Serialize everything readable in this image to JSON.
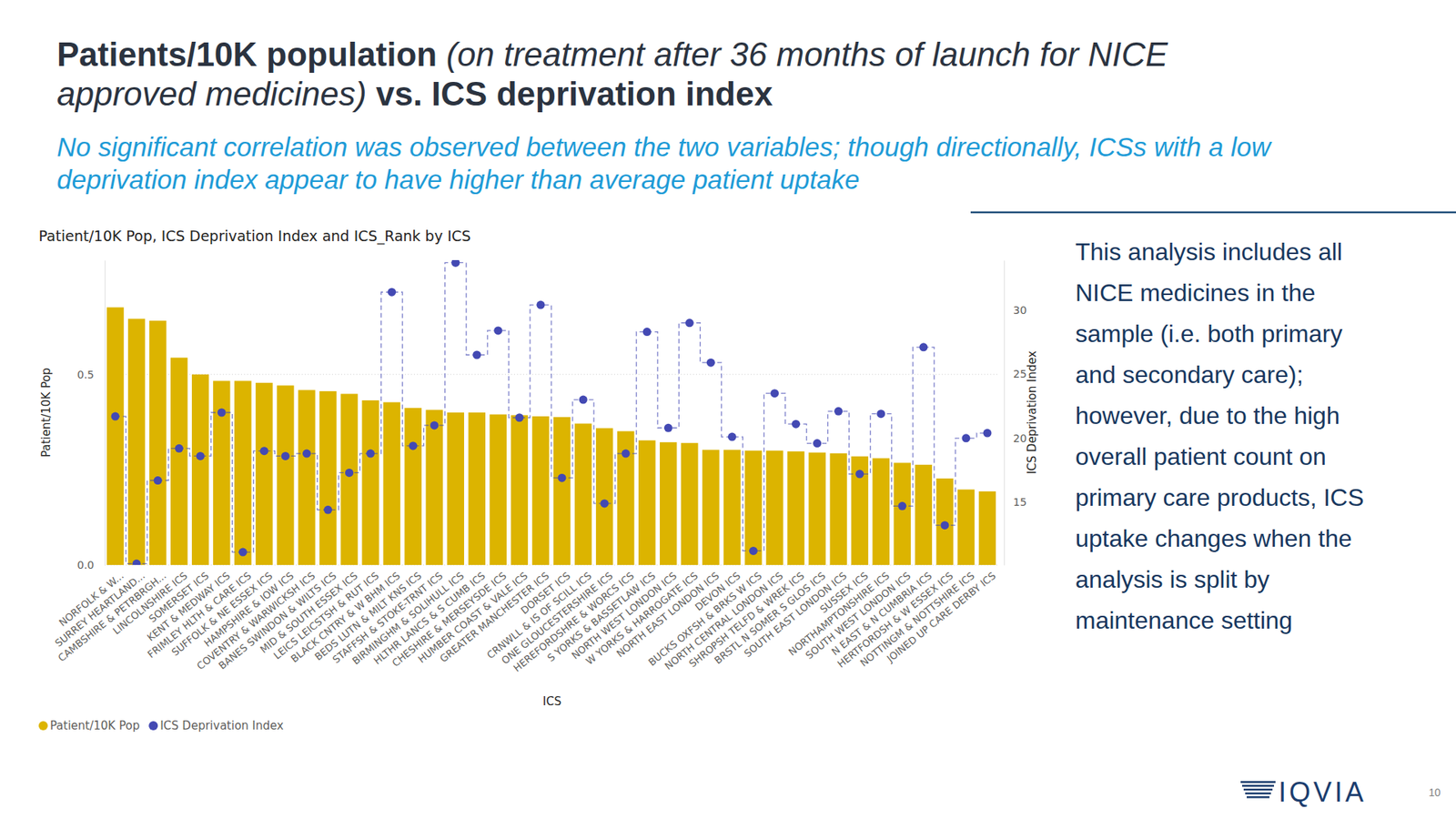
{
  "slide": {
    "title": [
      "Patients/10K population",
      "(on treatment after 36 months of launch for NICE approved medicines)",
      "vs. ICS deprivation index"
    ],
    "subtitle": "No significant correlation was observed between the two variables; though directionally, ICSs with a low deprivation index appear to have higher than average patient uptake",
    "note": [
      "This analysis includes all",
      "NICE medicines in the",
      "sample (i.e. both primary",
      "and secondary care);",
      "however, due to the high",
      "overall patient count on",
      "primary care products, ICS",
      "uptake changes when the",
      "analysis is split by",
      "maintenance setting"
    ],
    "logo": "IQVIA",
    "page": 10
  },
  "chart_data": {
    "type": "bar",
    "title": "Patient/10K Pop, ICS Deprivation Index and ICS_Rank by ICS",
    "xlabel": "ICS",
    "ylabel": "Patient/10K Pop",
    "y2label": "ICS Deprivation Index",
    "categories": [
      "NORFOLK & W...",
      "SURREY HEARTLAND...",
      "CAMBSHIRE & PETRBRGH...",
      "LINCOLNSHIRE ICS",
      "SOMERSET ICS",
      "KENT & MEDWAY ICS",
      "FRIMLEY HLTH & CARE ICS",
      "SUFFOLK & NE ESSEX ICS",
      "HAMPSHIRE & IOW ICS",
      "COVENTRY & WARWICKSH ICS",
      "BANES SWINDON & WILTS ICS",
      "MID & SOUTH ESSEX ICS",
      "LEICS LEICSTSH & RUT ICS",
      "BLACK CNTRY & W BHM ICS",
      "BEDS LUTN & MILT KNS ICS",
      "STAFFSH & STOKE-TRNT ICS",
      "BIRMINGHM & SOLIHULL ICS",
      "HLTHR LANCS & S CUMB ICS",
      "CHESHIRE & MERSEYSDE ICS",
      "HUMBER COAST & VALE ICS",
      "GREATER MANCHESTER ICS",
      "DORSET ICS",
      "CRNWLL & IS OF SCILL ICS",
      "ONE GLOUCESTERSHIRE ICS",
      "HEREFORDSHRE & WORCS ICS",
      "S YORKS & BASSETLAW ICS",
      "NORTH WEST LONDON ICS",
      "W YORKS & HARROGATE ICS",
      "NORTH EAST LONDON ICS",
      "DEVON ICS",
      "BUCKS OXFSH & BRKS W ICS",
      "NORTH CENTRAL LONDON ICS",
      "SHROPSH TELFD & WREK ICS",
      "BRSTL N SOMER S GLOS ICS",
      "SOUTH EAST LONDON ICS",
      "SUSSEX ICS",
      "NORTHAMPTONSHIRE ICS",
      "SOUTH WEST LONDON ICS",
      "N EAST & N CUMBRIA ICS",
      "HERTFORDSH & W ESSEX ICS",
      "NOTTINGM & NOTTSHIRE ICS",
      "JOINED UP CARE DERBY ICS"
    ],
    "series": [
      {
        "name": "Patient/10K Pop",
        "type": "bar",
        "color": "#dcb400",
        "values": [
          0.676,
          0.646,
          0.641,
          0.544,
          0.5,
          0.483,
          0.483,
          0.478,
          0.471,
          0.459,
          0.456,
          0.449,
          0.432,
          0.427,
          0.412,
          0.407,
          0.4,
          0.4,
          0.395,
          0.393,
          0.39,
          0.388,
          0.371,
          0.359,
          0.351,
          0.327,
          0.322,
          0.32,
          0.302,
          0.302,
          0.3,
          0.3,
          0.298,
          0.295,
          0.293,
          0.285,
          0.28,
          0.268,
          0.263,
          0.227,
          0.198,
          0.193
        ]
      },
      {
        "name": "ICS Deprivation Index",
        "type": "line",
        "axis": "y2",
        "color": "#4349b3",
        "marker": "circle",
        "line_style": "dashed",
        "values": [
          21.7,
          10.2,
          16.7,
          19.2,
          18.6,
          22.0,
          11.1,
          19.0,
          18.6,
          18.8,
          14.4,
          17.3,
          18.8,
          31.4,
          19.4,
          21.0,
          33.7,
          26.5,
          28.4,
          21.6,
          30.4,
          16.9,
          23.0,
          14.9,
          18.8,
          28.3,
          20.8,
          29.0,
          25.9,
          20.1,
          11.2,
          23.5,
          21.1,
          19.6,
          22.1,
          17.2,
          21.9,
          14.7,
          27.1,
          13.2,
          20.0,
          20.4
        ]
      }
    ],
    "ylim": [
      0,
      0.8
    ],
    "yticks": [
      {
        "value": 0,
        "label": "0.0"
      },
      {
        "value": 0.5,
        "label": "0.5"
      }
    ],
    "y2lim": [
      10.1,
      33.9
    ],
    "y2ticks": [
      15,
      20,
      25,
      30
    ],
    "grid": true,
    "legend": "bottom-left"
  }
}
